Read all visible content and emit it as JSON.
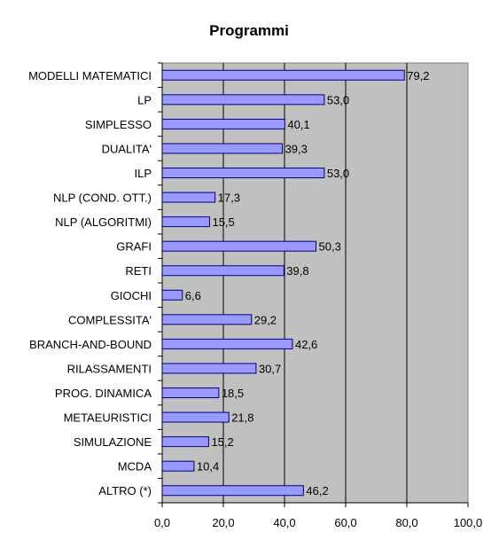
{
  "chart_data": {
    "type": "bar",
    "orientation": "horizontal",
    "title": "Programmi",
    "xlabel": "",
    "ylabel": "",
    "categories": [
      "MODELLI MATEMATICI",
      "LP",
      "SIMPLESSO",
      "DUALITA'",
      "ILP",
      "NLP (COND. OTT.)",
      "NLP (ALGORITMI)",
      "GRAFI",
      "RETI",
      "GIOCHI",
      "COMPLESSITA'",
      "BRANCH-AND-BOUND",
      "RILASSAMENTI",
      "PROG. DINAMICA",
      "METAEURISTICI",
      "SIMULAZIONE",
      "MCDA",
      "ALTRO (*)"
    ],
    "values": [
      79.2,
      53.0,
      40.1,
      39.3,
      53.0,
      17.3,
      15.5,
      50.3,
      39.8,
      6.6,
      29.2,
      42.6,
      30.7,
      18.5,
      21.8,
      15.2,
      10.4,
      46.2
    ],
    "value_labels": [
      "79,2",
      "53,0",
      "40,1",
      "39,3",
      "53,0",
      "17,3",
      "15,5",
      "50,3",
      "39,8",
      "6,6",
      "29,2",
      "42,6",
      "30,7",
      "18,5",
      "21,8",
      "15,2",
      "10,4",
      "46,2"
    ],
    "xlim": [
      0,
      100
    ],
    "xticks": [
      0,
      20,
      40,
      60,
      80,
      100
    ],
    "xtick_labels": [
      "0,0",
      "20,0",
      "40,0",
      "60,0",
      "80,0",
      "100,0"
    ],
    "grid": true,
    "legend": false,
    "colors": {
      "bar_fill": "#9999ff",
      "bar_stroke": "#000080",
      "plot_background": "#c0c0c0",
      "gridline": "#000000"
    }
  }
}
